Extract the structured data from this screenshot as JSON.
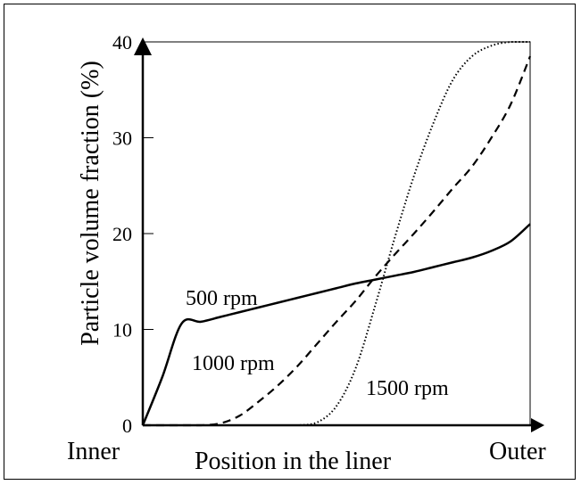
{
  "chart_data": {
    "type": "line",
    "xlabel": "Position in the liner",
    "ylabel": "Particle volume fraction (%)",
    "x_ends": {
      "left": "Inner",
      "right": "Outer"
    },
    "ylim": [
      0,
      40
    ],
    "yticks": [
      "0",
      "10",
      "20",
      "30",
      "40"
    ],
    "x": [
      0,
      5,
      10,
      15,
      20,
      25,
      30,
      35,
      40,
      45,
      50,
      55,
      60,
      65,
      70,
      75,
      80,
      85,
      90,
      95,
      100
    ],
    "series": [
      {
        "name": "500 rpm",
        "style": "solid",
        "values": [
          0,
          5,
          10.6,
          10.8,
          11.3,
          11.8,
          12.3,
          12.8,
          13.3,
          13.8,
          14.3,
          14.8,
          15.2,
          15.6,
          16.0,
          16.5,
          17.0,
          17.5,
          18.2,
          19.2,
          21.0
        ]
      },
      {
        "name": "1000 rpm",
        "style": "dashed",
        "values": [
          0,
          0,
          0,
          0,
          0.2,
          1.0,
          2.5,
          4.2,
          6.2,
          8.5,
          10.8,
          13.0,
          15.5,
          17.8,
          20.0,
          22.3,
          24.7,
          27.0,
          30.0,
          33.5,
          38.5
        ]
      },
      {
        "name": "1500 rpm",
        "style": "dotted",
        "values": [
          0,
          0,
          0,
          0,
          0,
          0,
          0,
          0,
          0,
          0.3,
          2.0,
          6.0,
          12.5,
          19.5,
          26.0,
          31.5,
          36.0,
          38.5,
          39.6,
          40.0,
          40.0
        ]
      }
    ],
    "series_labels": [
      "500 rpm",
      "1000 rpm",
      "1500 rpm"
    ],
    "grid": false
  }
}
